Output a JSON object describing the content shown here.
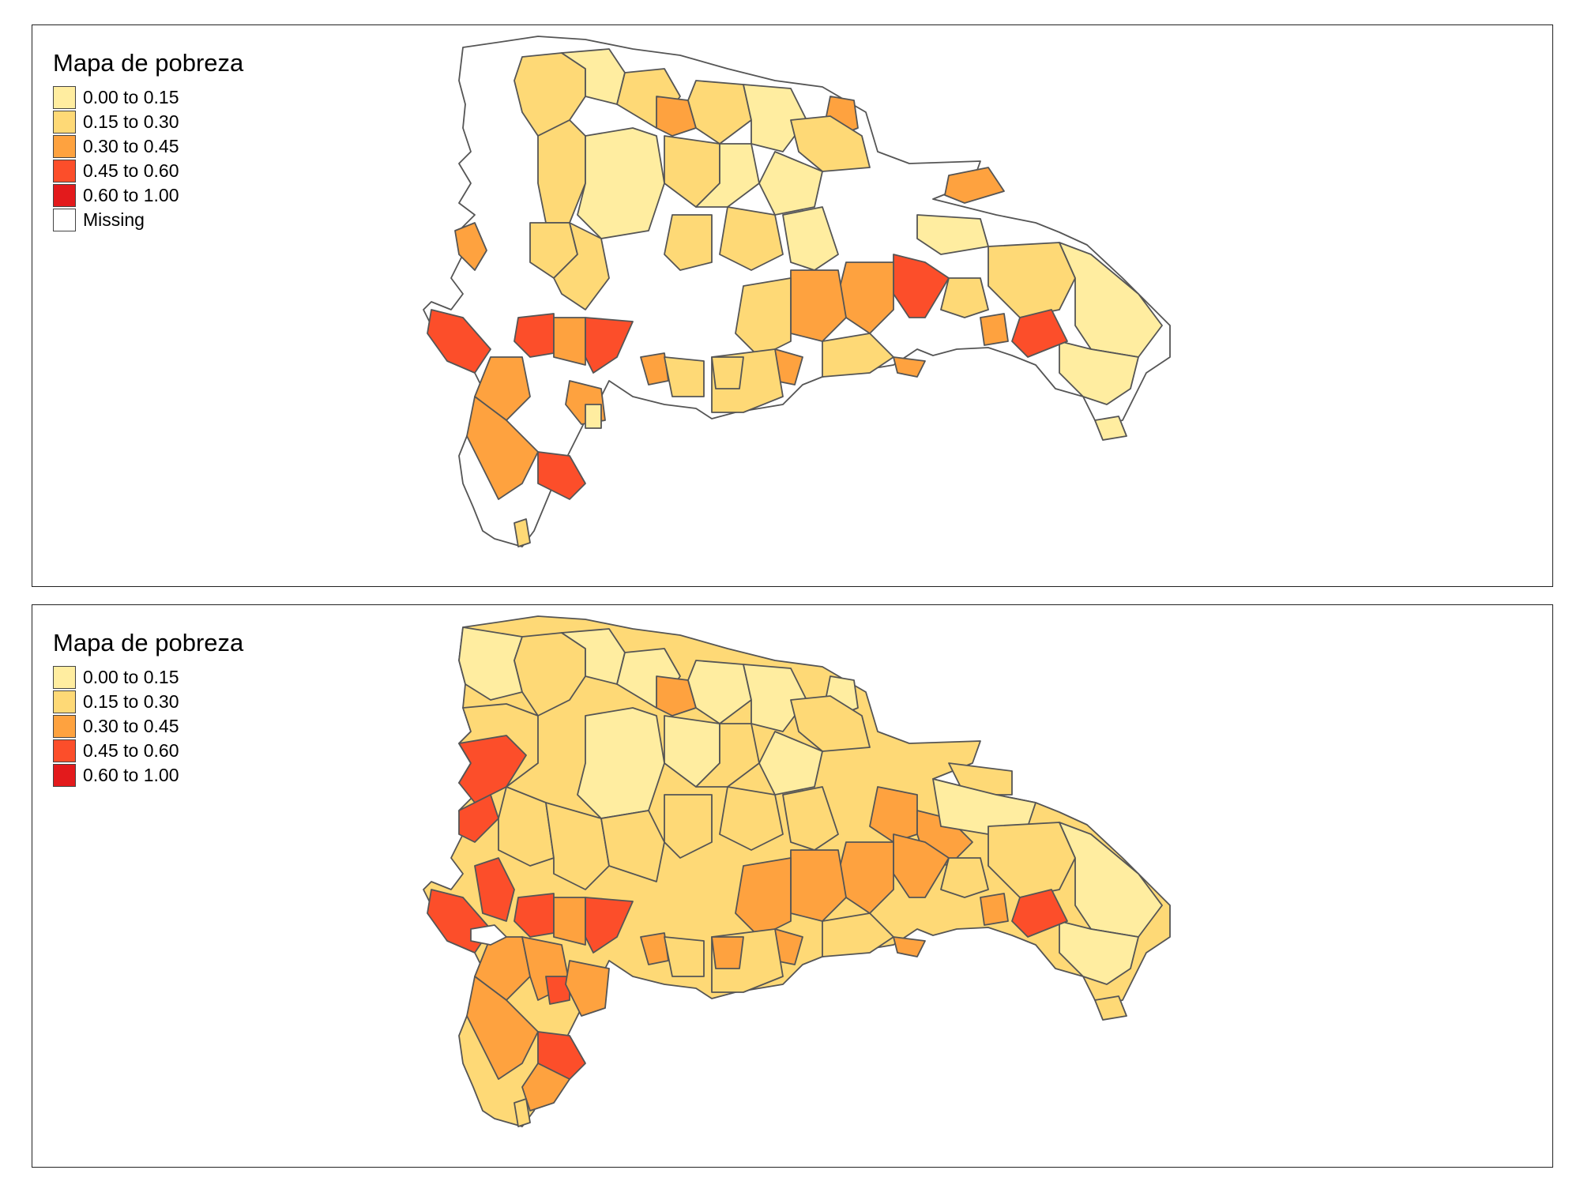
{
  "colors": {
    "c0": "#FFEDA0",
    "c1": "#FED976",
    "c2": "#FEA23F",
    "c3": "#FC4E2A",
    "c4": "#E31A1C",
    "missing": "#FFFFFF",
    "border": "#555555"
  },
  "maps": [
    {
      "legend": {
        "title": "Mapa de pobreza",
        "items": [
          {
            "label": "0.00 to 0.15",
            "color": "#FFEDA0"
          },
          {
            "label": "0.15 to 0.30",
            "color": "#FED976"
          },
          {
            "label": "0.30 to 0.45",
            "color": "#FEA23F"
          },
          {
            "label": "0.45 to 0.60",
            "color": "#FC4E2A"
          },
          {
            "label": "0.60 to 1.00",
            "color": "#E31A1C"
          },
          {
            "label": "Missing",
            "color": "#FFFFFF"
          }
        ]
      }
    },
    {
      "legend": {
        "title": "Mapa de pobreza",
        "items": [
          {
            "label": "0.00 to 0.15",
            "color": "#FFEDA0"
          },
          {
            "label": "0.15 to 0.30",
            "color": "#FED976"
          },
          {
            "label": "0.30 to 0.45",
            "color": "#FEA23F"
          },
          {
            "label": "0.45 to 0.60",
            "color": "#FC4E2A"
          },
          {
            "label": "0.60 to 1.00",
            "color": "#E31A1C"
          }
        ]
      }
    }
  ]
}
